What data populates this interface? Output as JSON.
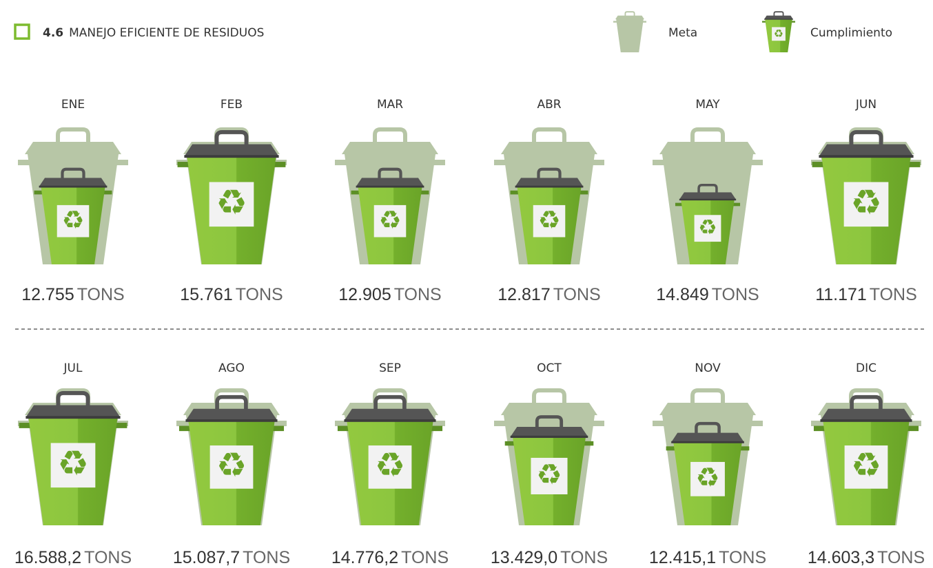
{
  "header": {
    "number": "4.6",
    "title": "MANEJO EFICIENTE DE RESIDUOS"
  },
  "legend": {
    "meta": "Meta",
    "cumplimiento": "Cumplimiento"
  },
  "months": [
    {
      "label": "ENE",
      "amount": "12.755",
      "unit": "TONS"
    },
    {
      "label": "FEB",
      "amount": "15.761",
      "unit": "TONS"
    },
    {
      "label": "MAR",
      "amount": "12.905",
      "unit": "TONS"
    },
    {
      "label": "ABR",
      "amount": "12.817",
      "unit": "TONS"
    },
    {
      "label": "MAY",
      "amount": "14.849",
      "unit": "TONS"
    },
    {
      "label": "JUN",
      "amount": "11.171",
      "unit": "TONS"
    },
    {
      "label": "JUL",
      "amount": "16.588,2",
      "unit": "TONS"
    },
    {
      "label": "AGO",
      "amount": "15.087,7",
      "unit": "TONS"
    },
    {
      "label": "SEP",
      "amount": "14.776,2",
      "unit": "TONS"
    },
    {
      "label": "OCT",
      "amount": "13.429,0",
      "unit": "TONS"
    },
    {
      "label": "NOV",
      "amount": "12.415,1",
      "unit": "TONS"
    },
    {
      "label": "DIC",
      "amount": "14.603,3",
      "unit": "TONS"
    }
  ]
}
